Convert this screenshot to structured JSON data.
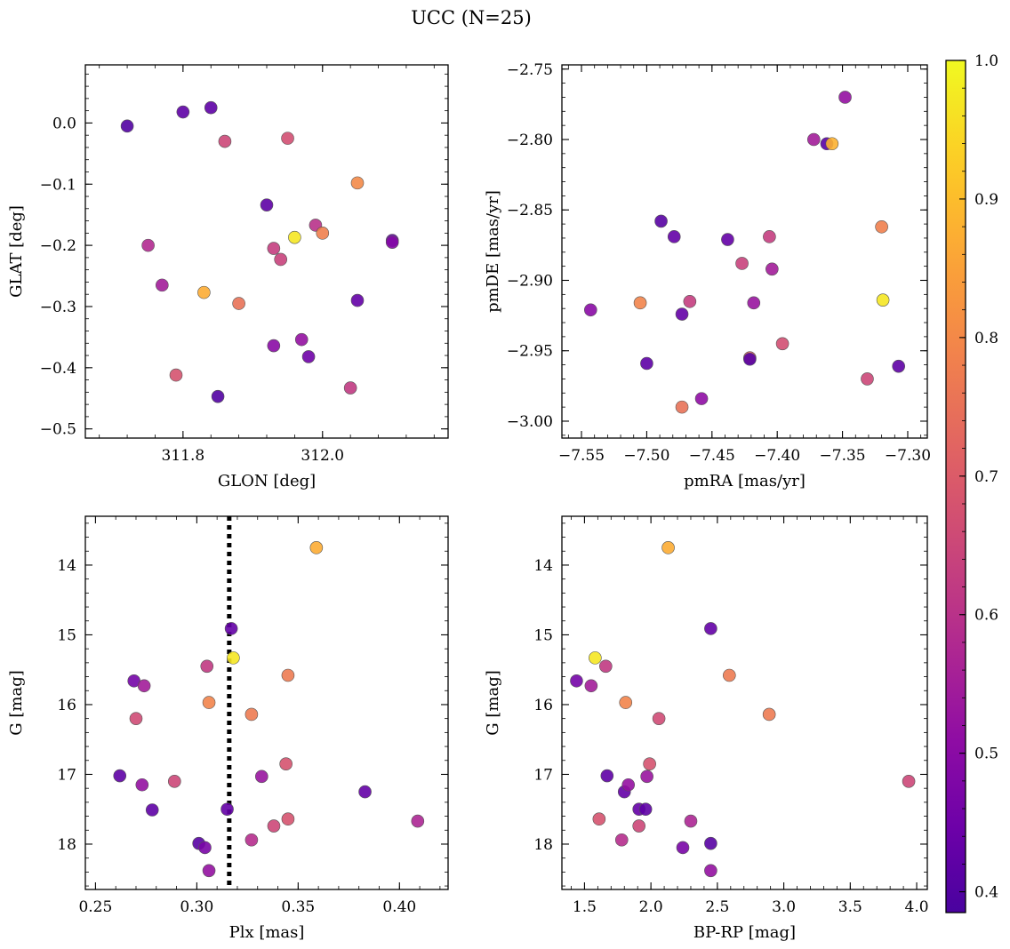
{
  "title": "UCC (N=25)",
  "colormap": "plasma",
  "chart_data": [
    {
      "type": "scatter",
      "xlabel": "GLON [deg]",
      "ylabel": "GLAT [deg]",
      "xlim": [
        311.66,
        312.18
      ],
      "ylim": [
        -0.515,
        0.095
      ],
      "y_inverted": false,
      "xticks": [
        311.8,
        312.0
      ],
      "xtick_labels": [
        "311.8",
        "312.0"
      ],
      "yticks": [
        0.0,
        -0.1,
        -0.2,
        -0.3,
        -0.4,
        -0.5
      ],
      "ytick_labels": [
        "0.0",
        "−0.1",
        "−0.2",
        "−0.3",
        "−0.4",
        "−0.5"
      ],
      "x": [
        311.72,
        311.8,
        311.84,
        311.86,
        311.75,
        311.77,
        311.83,
        311.88,
        311.79,
        311.85,
        311.92,
        311.93,
        311.94,
        311.93,
        311.95,
        311.96,
        311.97,
        311.98,
        311.99,
        312.0,
        312.05,
        312.05,
        312.04,
        312.1,
        312.1
      ],
      "y": [
        -0.005,
        0.018,
        0.025,
        -0.03,
        -0.2,
        -0.265,
        -0.277,
        -0.295,
        -0.412,
        -0.447,
        -0.134,
        -0.205,
        -0.223,
        -0.364,
        -0.025,
        -0.187,
        -0.354,
        -0.382,
        -0.167,
        -0.18,
        -0.098,
        -0.29,
        -0.433,
        -0.192,
        -0.195
      ],
      "c": [
        0.4,
        0.42,
        0.42,
        0.65,
        0.58,
        0.55,
        0.87,
        0.75,
        0.68,
        0.4,
        0.42,
        0.63,
        0.64,
        0.5,
        0.67,
        0.97,
        0.52,
        0.45,
        0.6,
        0.78,
        0.8,
        0.43,
        0.62,
        0.43,
        0.49
      ]
    },
    {
      "type": "scatter",
      "xlabel": "pmRA [mas/yr]",
      "ylabel": "pmDE [mas/yr]",
      "xlim": [
        -7.565,
        -7.285
      ],
      "ylim": [
        -3.012,
        -2.747
      ],
      "y_inverted": false,
      "xticks": [
        -7.55,
        -7.5,
        -7.45,
        -7.4,
        -7.35,
        -7.3
      ],
      "xtick_labels": [
        "−7.55",
        "−7.50",
        "−7.45",
        "−7.40",
        "−7.35",
        "−7.30"
      ],
      "yticks": [
        -2.75,
        -2.8,
        -2.85,
        -2.9,
        -2.95,
        -3.0
      ],
      "ytick_labels": [
        "−2.75",
        "−2.80",
        "−2.85",
        "−2.90",
        "−2.95",
        "−3.00"
      ],
      "x": [
        -7.543,
        -7.505,
        -7.5,
        -7.489,
        -7.479,
        -7.473,
        -7.473,
        -7.467,
        -7.458,
        -7.438,
        -7.427,
        -7.421,
        -7.421,
        -7.418,
        -7.406,
        -7.404,
        -7.396,
        -7.372,
        -7.362,
        -7.358,
        -7.348,
        -7.331,
        -7.32,
        -7.319,
        -7.307
      ],
      "y": [
        -2.921,
        -2.916,
        -2.959,
        -2.858,
        -2.869,
        -2.924,
        -2.99,
        -2.915,
        -2.984,
        -2.871,
        -2.888,
        -2.955,
        -2.956,
        -2.916,
        -2.869,
        -2.892,
        -2.945,
        -2.8,
        -2.803,
        -2.803,
        -2.77,
        -2.97,
        -2.862,
        -2.914,
        -2.961
      ],
      "c": [
        0.5,
        0.79,
        0.42,
        0.41,
        0.43,
        0.43,
        0.75,
        0.63,
        0.51,
        0.43,
        0.64,
        0.72,
        0.41,
        0.53,
        0.63,
        0.55,
        0.67,
        0.55,
        0.41,
        0.88,
        0.52,
        0.65,
        0.78,
        0.97,
        0.42
      ]
    },
    {
      "type": "scatter",
      "xlabel": "Plx [mas]",
      "ylabel": "G [mag]",
      "xlim": [
        0.245,
        0.424
      ],
      "ylim": [
        18.65,
        13.3
      ],
      "y_inverted": true,
      "xticks": [
        0.25,
        0.3,
        0.35,
        0.4
      ],
      "xtick_labels": [
        "0.25",
        "0.30",
        "0.35",
        "0.40"
      ],
      "yticks": [
        14,
        15,
        16,
        17,
        18
      ],
      "ytick_labels": [
        "14",
        "15",
        "16",
        "17",
        "18"
      ],
      "vline": 0.316,
      "x": [
        0.262,
        0.269,
        0.27,
        0.273,
        0.274,
        0.278,
        0.289,
        0.301,
        0.304,
        0.305,
        0.306,
        0.306,
        0.315,
        0.317,
        0.318,
        0.327,
        0.327,
        0.332,
        0.338,
        0.344,
        0.345,
        0.345,
        0.359,
        0.383,
        0.409
      ],
      "y": [
        17.02,
        15.66,
        16.2,
        17.15,
        15.73,
        17.51,
        17.1,
        17.99,
        18.05,
        15.45,
        15.97,
        18.38,
        17.5,
        14.91,
        15.33,
        16.14,
        17.94,
        17.03,
        17.74,
        16.85,
        17.64,
        15.58,
        13.75,
        17.25,
        17.67
      ],
      "c": [
        0.42,
        0.46,
        0.66,
        0.52,
        0.55,
        0.42,
        0.65,
        0.41,
        0.47,
        0.62,
        0.79,
        0.52,
        0.43,
        0.43,
        0.97,
        0.77,
        0.59,
        0.53,
        0.65,
        0.68,
        0.68,
        0.77,
        0.87,
        0.43,
        0.57
      ]
    },
    {
      "type": "scatter",
      "xlabel": "BP-RP [mag]",
      "ylabel": "G [mag]",
      "xlim": [
        1.33,
        4.08
      ],
      "ylim": [
        18.65,
        13.3
      ],
      "y_inverted": true,
      "xticks": [
        1.5,
        2.0,
        2.5,
        3.0,
        3.5,
        4.0
      ],
      "xtick_labels": [
        "1.5",
        "2.0",
        "2.5",
        "3.0",
        "3.5",
        "4.0"
      ],
      "yticks": [
        14,
        15,
        16,
        17,
        18
      ],
      "ytick_labels": [
        "14",
        "15",
        "16",
        "17",
        "18"
      ],
      "x": [
        1.44,
        1.55,
        1.58,
        1.61,
        1.66,
        1.67,
        1.78,
        1.8,
        1.81,
        1.83,
        1.91,
        1.91,
        1.96,
        1.97,
        1.99,
        2.06,
        2.13,
        2.24,
        2.3,
        2.45,
        2.45,
        2.45,
        2.59,
        2.89,
        3.94
      ],
      "y": [
        15.66,
        15.73,
        15.33,
        17.64,
        15.45,
        17.02,
        17.94,
        17.25,
        15.97,
        17.15,
        17.5,
        17.74,
        17.5,
        17.03,
        16.85,
        16.2,
        13.75,
        18.05,
        17.67,
        14.91,
        17.99,
        18.38,
        15.58,
        16.14,
        17.1
      ],
      "c": [
        0.46,
        0.55,
        0.97,
        0.68,
        0.62,
        0.42,
        0.59,
        0.43,
        0.79,
        0.52,
        0.43,
        0.65,
        0.42,
        0.53,
        0.68,
        0.66,
        0.87,
        0.47,
        0.57,
        0.43,
        0.41,
        0.52,
        0.77,
        0.77,
        0.65
      ]
    }
  ],
  "colorbar": {
    "range": [
      0.385,
      1.0
    ],
    "ticks": [
      0.4,
      0.5,
      0.6,
      0.7,
      0.8,
      0.9,
      1.0
    ],
    "tick_labels": [
      "0.4",
      "0.5",
      "0.6",
      "0.7",
      "0.8",
      "0.9",
      "1.0"
    ]
  }
}
